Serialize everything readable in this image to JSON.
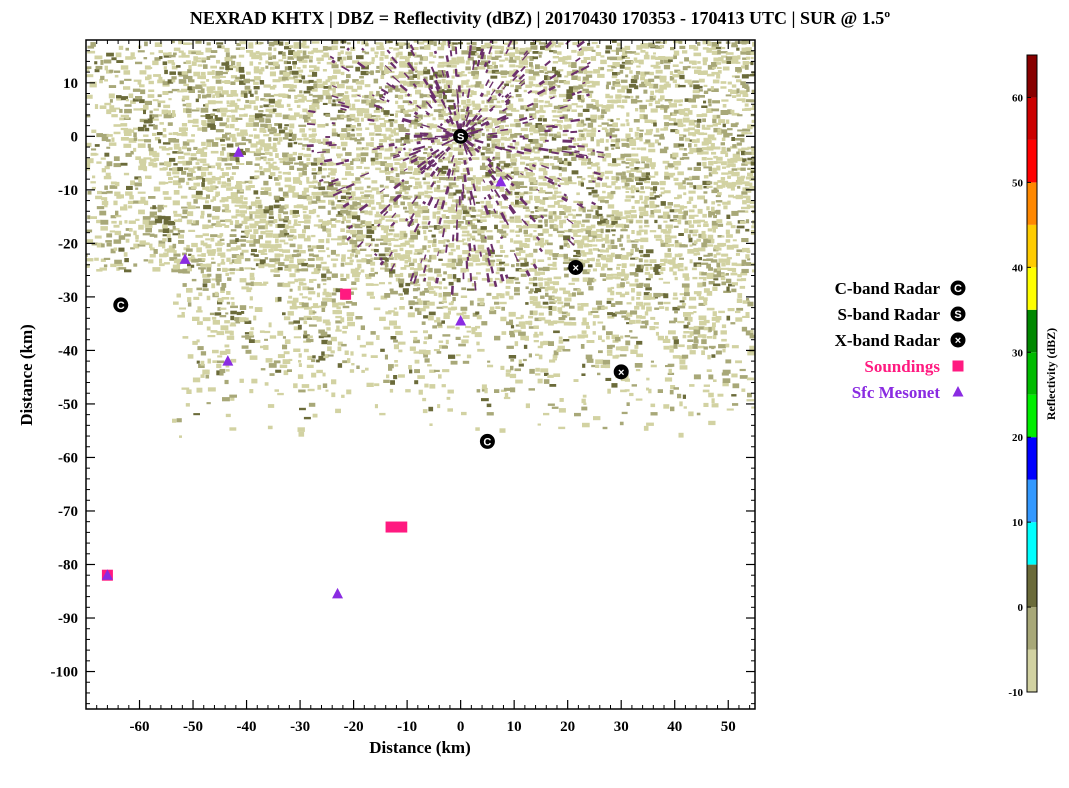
{
  "chart_data": {
    "type": "scatter",
    "title": "NEXRAD KHTX | DBZ = Reflectivity (dBZ) | 20170430 170353 - 170413 UTC | SUR @ 1.5º",
    "xlabel": "Distance (km)",
    "ylabel": "Distance (km)",
    "xlim": [
      -70,
      55
    ],
    "ylim": [
      -107,
      18
    ],
    "x_ticks": [
      -60,
      -50,
      -40,
      -30,
      -20,
      -10,
      0,
      10,
      20,
      30,
      40,
      50
    ],
    "y_ticks": [
      10,
      0,
      -10,
      -20,
      -30,
      -40,
      -50,
      -60,
      -70,
      -80,
      -90,
      -100
    ],
    "grid": false,
    "legend_placement": "right",
    "series": [
      {
        "name": "C-band Radar",
        "marker": "C",
        "color": "#000000",
        "points": [
          {
            "x": -63.5,
            "y": -31.5
          },
          {
            "x": 5,
            "y": -57
          }
        ]
      },
      {
        "name": "S-band Radar",
        "marker": "S",
        "color": "#000000",
        "points": [
          {
            "x": 0,
            "y": 0
          }
        ]
      },
      {
        "name": "X-band Radar",
        "marker": "X",
        "color": "#000000",
        "points": [
          {
            "x": 21.5,
            "y": -24.5
          },
          {
            "x": 30,
            "y": -44
          }
        ]
      },
      {
        "name": "Soundings",
        "marker": "square",
        "color": "#ff1a80",
        "points": [
          {
            "x": -21.5,
            "y": -29.5
          },
          {
            "x": -13,
            "y": -73
          },
          {
            "x": -11,
            "y": -73
          },
          {
            "x": -66,
            "y": -82
          }
        ]
      },
      {
        "name": "Sfc Mesonet",
        "marker": "triangle",
        "color": "#8a2be2",
        "points": [
          {
            "x": -41.5,
            "y": -3
          },
          {
            "x": 7.5,
            "y": -8.5
          },
          {
            "x": -51.5,
            "y": -23
          },
          {
            "x": 0,
            "y": -34.5
          },
          {
            "x": -43.5,
            "y": -42
          },
          {
            "x": -66,
            "y": -82
          },
          {
            "x": -23,
            "y": -85.5
          }
        ]
      }
    ],
    "colorbar": {
      "label": "Reflectivity (dBZ)",
      "range": [
        -10,
        65
      ],
      "ticks": [
        -10,
        0,
        10,
        20,
        30,
        40,
        50,
        60
      ],
      "bins": [
        {
          "from": -10,
          "to": -5,
          "color": "#d2d2a2"
        },
        {
          "from": -5,
          "to": 0,
          "color": "#a8a878"
        },
        {
          "from": 0,
          "to": 5,
          "color": "#6b6b3a"
        },
        {
          "from": 5,
          "to": 10,
          "color": "#00ffff"
        },
        {
          "from": 10,
          "to": 15,
          "color": "#3399ff"
        },
        {
          "from": 15,
          "to": 20,
          "color": "#0000ff"
        },
        {
          "from": 20,
          "to": 25,
          "color": "#00ee00"
        },
        {
          "from": 25,
          "to": 30,
          "color": "#00bb00"
        },
        {
          "from": 30,
          "to": 35,
          "color": "#008800"
        },
        {
          "from": 35,
          "to": 40,
          "color": "#ffff00"
        },
        {
          "from": 40,
          "to": 45,
          "color": "#ffcc00"
        },
        {
          "from": 45,
          "to": 50,
          "color": "#ff8800"
        },
        {
          "from": 50,
          "to": 55,
          "color": "#ff0000"
        },
        {
          "from": 55,
          "to": 60,
          "color": "#cc0000"
        },
        {
          "from": 60,
          "to": 65,
          "color": "#880000"
        }
      ]
    },
    "reflectivity_field": {
      "radar_center": {
        "x": 0,
        "y": 0
      },
      "palette": {
        "low": "#d2d2a2",
        "mid": "#a8a878",
        "high": "#6b6b3a",
        "near_radar": "#6b2f6b"
      }
    }
  }
}
